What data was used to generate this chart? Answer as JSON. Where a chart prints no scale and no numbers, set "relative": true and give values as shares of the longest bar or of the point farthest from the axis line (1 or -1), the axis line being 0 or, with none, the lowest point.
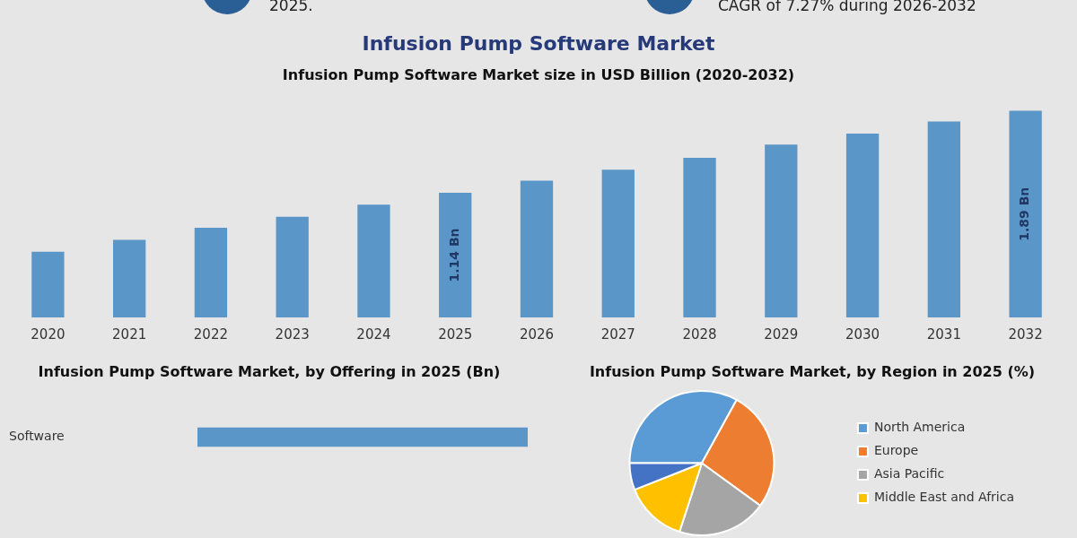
{
  "chart_data": [
    {
      "type": "bar",
      "title": "Infusion Pump Software Market",
      "subtitle": "Infusion Pump Software Market size in USD Billion (2020-2032)",
      "annotations": [
        "2025.",
        "CAGR of 7.27% during 2026-2032"
      ],
      "categories": [
        "2020",
        "2021",
        "2022",
        "2023",
        "2024",
        "2025",
        "2026",
        "2027",
        "2028",
        "2029",
        "2030",
        "2031",
        "2032"
      ],
      "values": [
        0.6,
        0.71,
        0.82,
        0.92,
        1.03,
        1.14,
        1.25,
        1.35,
        1.46,
        1.58,
        1.68,
        1.79,
        1.89
      ],
      "value_labels": [
        null,
        null,
        null,
        null,
        null,
        "1.14 Bn",
        null,
        null,
        null,
        null,
        null,
        null,
        "1.89 Bn"
      ],
      "color": "#5b96c8"
    },
    {
      "type": "bar",
      "orientation": "horizontal",
      "relative": true,
      "title": "Infusion Pump Software Market, by Offering in 2025 (Bn)",
      "categories": [
        "Software"
      ],
      "values": [
        1
      ],
      "color": "#5b96c8"
    },
    {
      "type": "pie",
      "title": "Infusion Pump Software Market, by Region in 2025 (%)",
      "legend": "right",
      "categories": [
        "North America",
        "Europe",
        "Asia Pacific",
        "Middle East and Africa",
        null
      ],
      "values": [
        33,
        27,
        20,
        14,
        6
      ],
      "colors": [
        "#5b9bd5",
        "#ed7d31",
        "#a5a5a5",
        "#ffc000",
        "#4472c4"
      ]
    }
  ]
}
